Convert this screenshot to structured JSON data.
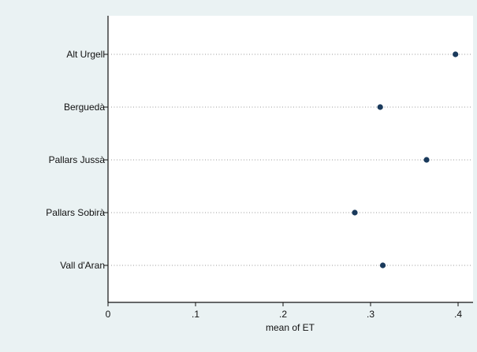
{
  "chart_data": {
    "type": "dot",
    "categories": [
      "Alt Urgell",
      "Berguedà",
      "Pallars Jussà",
      "Pallars Sobirà",
      "Vall d'Aran"
    ],
    "values": [
      0.397,
      0.311,
      0.364,
      0.282,
      0.314
    ],
    "xlabel": "mean of ET",
    "ylabel": "",
    "xlim": [
      0,
      0.4
    ],
    "xticks": [
      0,
      0.1,
      0.2,
      0.3,
      0.4
    ],
    "xtick_labels": [
      "0",
      ".1",
      ".2",
      ".3",
      ".4"
    ],
    "grid": "dotted horizontal guide lines",
    "colors": {
      "background": "#eaf2f3",
      "plot_area": "#ffffff",
      "marker": "#1a3a5c",
      "guide": "#9a9a9a",
      "axis": "#111111"
    }
  }
}
